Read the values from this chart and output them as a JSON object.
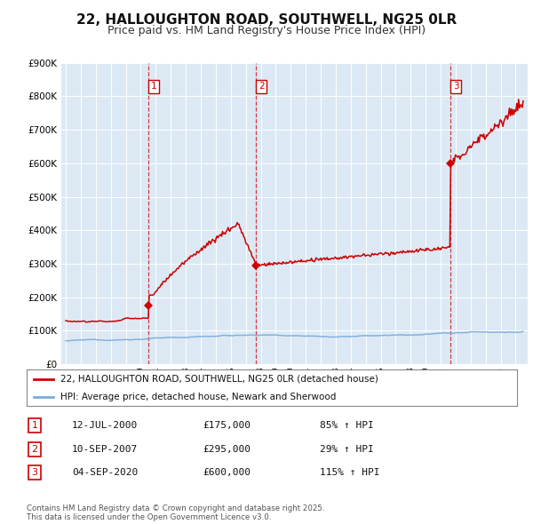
{
  "title": "22, HALLOUGHTON ROAD, SOUTHWELL, NG25 0LR",
  "subtitle": "Price paid vs. HM Land Registry's House Price Index (HPI)",
  "title_fontsize": 11,
  "subtitle_fontsize": 9,
  "background_color": "#ffffff",
  "chart_bg_color": "#dce9f5",
  "grid_color": "#ffffff",
  "red_line_color": "#cc0000",
  "blue_line_color": "#7aabda",
  "ylim": [
    0,
    900000
  ],
  "yticks": [
    0,
    100000,
    200000,
    300000,
    400000,
    500000,
    600000,
    700000,
    800000,
    900000
  ],
  "ytick_labels": [
    "£0",
    "£100K",
    "£200K",
    "£300K",
    "£400K",
    "£500K",
    "£600K",
    "£700K",
    "£800K",
    "£900K"
  ],
  "sale_events": [
    {
      "label": "1",
      "date_num": 2000.53,
      "price": 175000,
      "display_date": "12-JUL-2000",
      "pct": "85%",
      "direction": "↑"
    },
    {
      "label": "2",
      "date_num": 2007.7,
      "price": 295000,
      "display_date": "10-SEP-2007",
      "pct": "29%",
      "direction": "↑"
    },
    {
      "label": "3",
      "date_num": 2020.67,
      "price": 600000,
      "display_date": "04-SEP-2020",
      "pct": "115%",
      "direction": "↑"
    }
  ],
  "legend_line1": "22, HALLOUGHTON ROAD, SOUTHWELL, NG25 0LR (detached house)",
  "legend_line2": "HPI: Average price, detached house, Newark and Sherwood",
  "footnote": "Contains HM Land Registry data © Crown copyright and database right 2025.\nThis data is licensed under the Open Government Licence v3.0.",
  "table_rows": [
    {
      "label": "1",
      "date": "12-JUL-2000",
      "price": "£175,000",
      "pct": "85% ↑ HPI"
    },
    {
      "label": "2",
      "date": "10-SEP-2007",
      "price": "£295,000",
      "pct": "29% ↑ HPI"
    },
    {
      "label": "3",
      "date": "04-SEP-2020",
      "price": "£600,000",
      "pct": "115% ↑ HPI"
    }
  ]
}
